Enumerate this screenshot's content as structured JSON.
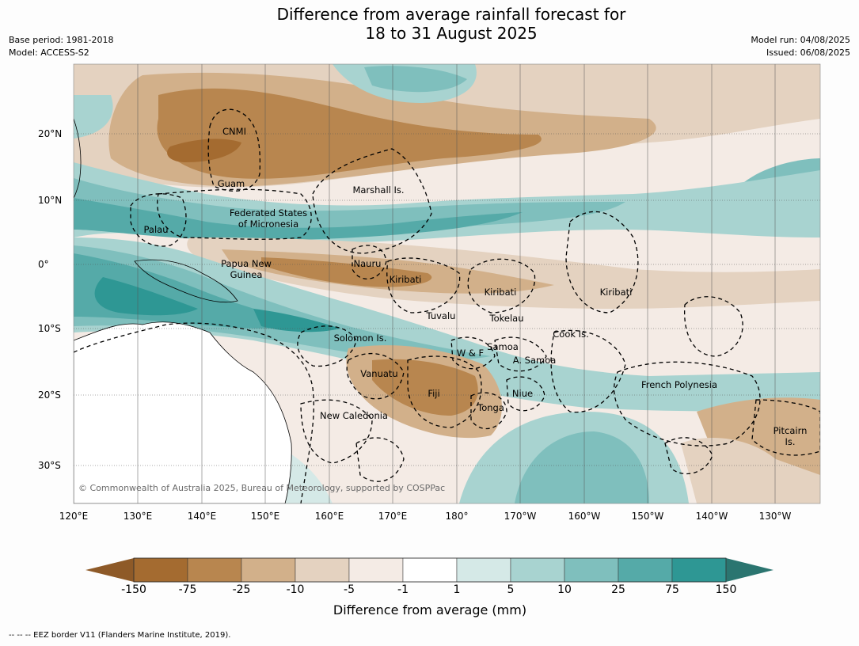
{
  "title_line1": "Difference from average rainfall forecast for",
  "title_line2": "18 to 31 August 2025",
  "base_period": "Base period: 1981-2018",
  "model": "Model: ACCESS-S2",
  "model_run": "Model run: 04/08/2025",
  "issued": "Issued: 06/08/2025",
  "copyright": "© Commonwealth of Australia 2025, Bureau of Meteorology, supported by COSPPac",
  "footnote": "--  --  -- EEZ border V11 (Flanders Marine Institute, 2019).",
  "longitude_labels": [
    "120°E",
    "130°E",
    "140°E",
    "150°E",
    "160°E",
    "170°E",
    "180°",
    "170°W",
    "160°W",
    "150°W",
    "140°W",
    "130°W"
  ],
  "latitude_labels": [
    "20°N",
    "10°N",
    "0°",
    "10°S",
    "20°S",
    "30°S"
  ],
  "places": [
    {
      "name": "CNMI"
    },
    {
      "name": "Guam"
    },
    {
      "name": "Marshall Is."
    },
    {
      "name": "Federated States\nof Micronesia"
    },
    {
      "name": "Palau"
    },
    {
      "name": "Papua New\nGuinea"
    },
    {
      "name": "Nauru"
    },
    {
      "name": "Kiribati"
    },
    {
      "name": "Kiribati"
    },
    {
      "name": "Kiribati"
    },
    {
      "name": "Tuvalu"
    },
    {
      "name": "Tokelau"
    },
    {
      "name": "Cook Is."
    },
    {
      "name": "Solomon Is."
    },
    {
      "name": "W & F"
    },
    {
      "name": "Samoa"
    },
    {
      "name": "A. Samoa"
    },
    {
      "name": "Vanuatu"
    },
    {
      "name": "Fiji"
    },
    {
      "name": "Niue"
    },
    {
      "name": "Tonga"
    },
    {
      "name": "French Polynesia"
    },
    {
      "name": "New Caledonia"
    },
    {
      "name": "Pitcairn\nIs."
    }
  ],
  "colorbar": {
    "label": "Difference from average (mm)",
    "ticks": [
      "-150",
      "-75",
      "-25",
      "-10",
      "-5",
      "-1",
      "1",
      "5",
      "10",
      "25",
      "75",
      "150"
    ],
    "colors": [
      "#a46b30",
      "#b8864f",
      "#d2b08a",
      "#e4d2c0",
      "#f4ebe5",
      "#ffffff",
      "#d5e9e7",
      "#a8d3d0",
      "#7fbfbd",
      "#55aaa8",
      "#2e9794"
    ],
    "extend_low_color": "#8e5a28",
    "extend_high_color": "#2b7570"
  }
}
